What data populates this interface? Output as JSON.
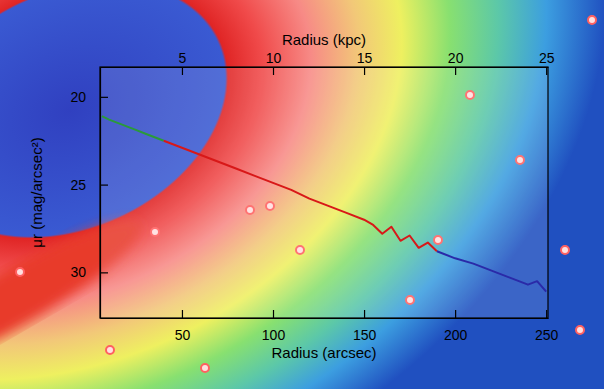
{
  "chart_data": {
    "type": "line",
    "x_label": "Radius (arcsec)",
    "x2_label": "Radius (kpc)",
    "y_label": "μr (mag/arcsec²)",
    "xlim": [
      5,
      251
    ],
    "xticks": [
      50,
      100,
      150,
      200,
      250
    ],
    "x2lim": [
      0.5,
      25.1
    ],
    "x2ticks": [
      5,
      10,
      15,
      20,
      25
    ],
    "ylim": [
      32.6,
      18.3
    ],
    "yticks": [
      20,
      25,
      30
    ],
    "series": [
      {
        "color": "#2a9a3a",
        "x": [
          6,
          10,
          15,
          20,
          25,
          30,
          35,
          40
        ],
        "values": [
          21.1,
          21.3,
          21.5,
          21.7,
          21.9,
          22.1,
          22.3,
          22.5
        ]
      },
      {
        "color": "#d81818",
        "x": [
          40,
          50,
          60,
          70,
          80,
          90,
          100,
          110,
          120,
          130,
          140,
          150,
          155,
          160,
          165,
          170,
          175,
          180,
          185,
          190
        ],
        "values": [
          22.5,
          22.9,
          23.3,
          23.7,
          24.1,
          24.5,
          24.9,
          25.3,
          25.8,
          26.2,
          26.6,
          27.0,
          27.3,
          27.8,
          27.4,
          28.2,
          27.9,
          28.6,
          28.3,
          28.8
        ]
      },
      {
        "color": "#2a2aa8",
        "x": [
          190,
          200,
          210,
          220,
          230,
          240,
          245,
          250
        ],
        "values": [
          28.8,
          29.2,
          29.5,
          29.9,
          30.3,
          30.7,
          30.5,
          31.1
        ]
      }
    ]
  }
}
